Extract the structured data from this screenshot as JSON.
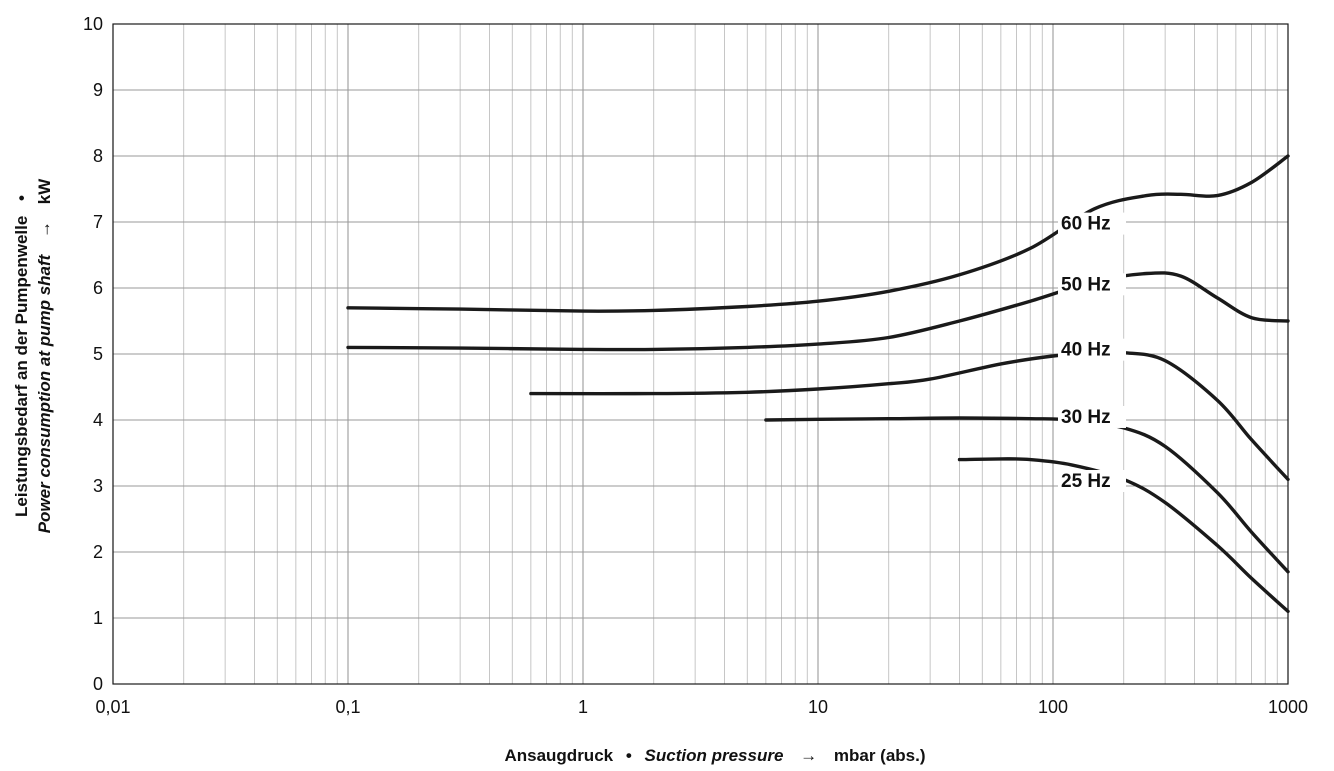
{
  "chart_data": {
    "type": "line",
    "x_scale": "log",
    "xlim": [
      0.01,
      1000
    ],
    "ylim": [
      0,
      10
    ],
    "grid": true,
    "x_ticks": [
      0.01,
      0.1,
      1,
      10,
      100,
      1000
    ],
    "x_tick_labels": [
      "0,01",
      "0,1",
      "1",
      "10",
      "100",
      "1000"
    ],
    "y_ticks": [
      0,
      1,
      2,
      3,
      4,
      5,
      6,
      7,
      8,
      9,
      10
    ],
    "y_tick_labels": [
      "0",
      "1",
      "2",
      "3",
      "4",
      "5",
      "6",
      "7",
      "8",
      "9",
      "10"
    ],
    "xlabel": {
      "de": "Ansaugdruck",
      "sep": "•",
      "en": "Suction pressure",
      "arrow": "→",
      "unit": "mbar (abs.)"
    },
    "ylabel": {
      "de": "Leistungsbedarf an der Pumpenwelle",
      "sep": "•",
      "en": "Power consumption at pump shaft",
      "arrow": "→",
      "unit": "kW"
    },
    "line_color": "#1a1a1a",
    "grid_color": "#9a9a9a",
    "series": [
      {
        "name": "60 Hz",
        "x": [
          0.1,
          0.3,
          1,
          2,
          5,
          10,
          20,
          40,
          80,
          150,
          250,
          350,
          500,
          700,
          1000
        ],
        "y": [
          5.7,
          5.68,
          5.65,
          5.66,
          5.72,
          5.8,
          5.95,
          6.2,
          6.6,
          7.2,
          7.4,
          7.42,
          7.4,
          7.6,
          8.0
        ]
      },
      {
        "name": "50 Hz",
        "x": [
          0.1,
          0.3,
          1,
          2,
          5,
          10,
          20,
          40,
          80,
          150,
          250,
          350,
          500,
          700,
          1000
        ],
        "y": [
          5.1,
          5.09,
          5.07,
          5.07,
          5.1,
          5.15,
          5.25,
          5.5,
          5.8,
          6.1,
          6.22,
          6.18,
          5.85,
          5.55,
          5.5
        ]
      },
      {
        "name": "40 Hz",
        "x": [
          0.6,
          2,
          5,
          10,
          20,
          30,
          60,
          100,
          150,
          200,
          300,
          500,
          700,
          1000
        ],
        "y": [
          4.4,
          4.4,
          4.42,
          4.47,
          4.55,
          4.62,
          4.85,
          4.97,
          5.02,
          5.02,
          4.9,
          4.3,
          3.7,
          3.1
        ]
      },
      {
        "name": "30 Hz",
        "x": [
          6,
          10,
          20,
          40,
          80,
          120,
          200,
          300,
          500,
          700,
          1000
        ],
        "y": [
          4.0,
          4.01,
          4.02,
          4.03,
          4.02,
          4.0,
          3.88,
          3.6,
          2.9,
          2.3,
          1.7
        ]
      },
      {
        "name": "25 Hz",
        "x": [
          40,
          60,
          80,
          120,
          200,
          300,
          500,
          700,
          1000
        ],
        "y": [
          3.4,
          3.41,
          3.4,
          3.32,
          3.1,
          2.75,
          2.1,
          1.6,
          1.1
        ]
      }
    ]
  }
}
